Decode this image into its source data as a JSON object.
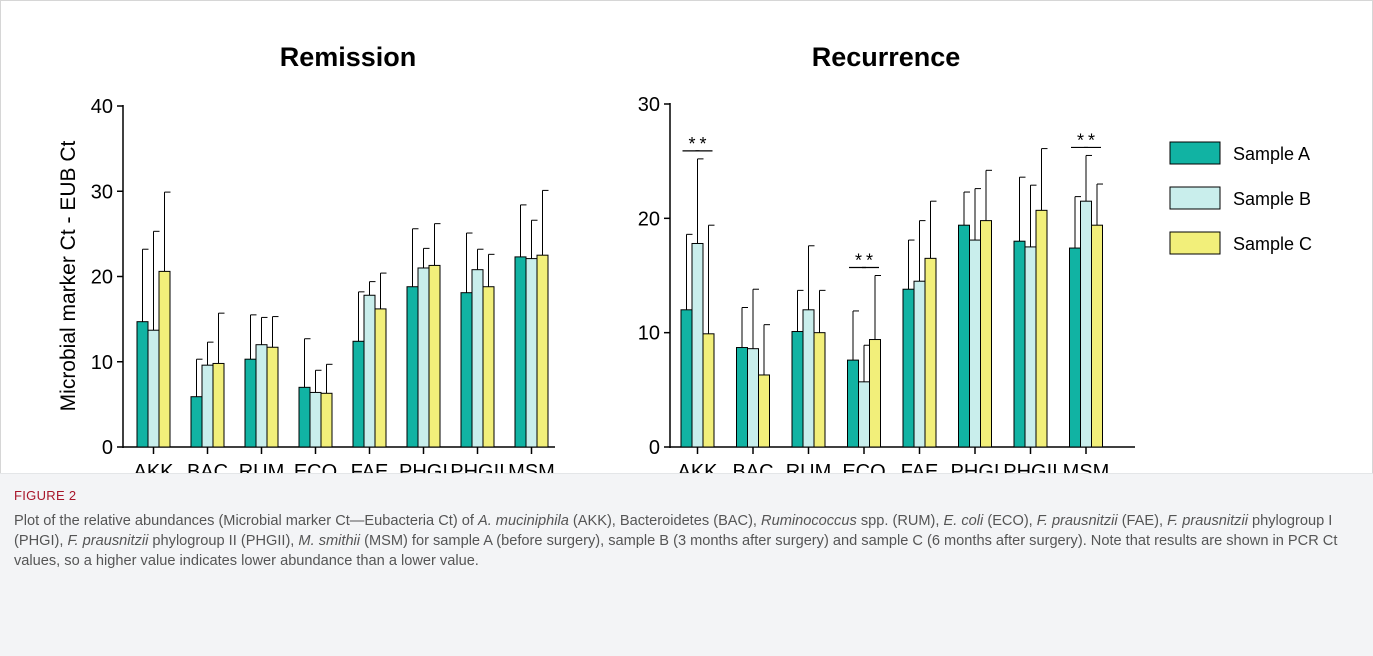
{
  "chart_data": [
    {
      "type": "bar",
      "title": "Remission",
      "ylabel": "Microbial marker Ct - EUB Ct",
      "ylim": [
        0,
        40
      ],
      "yticks": [
        0,
        10,
        20,
        30,
        40
      ],
      "categories": [
        "AKK",
        "BAC",
        "RUM",
        "ECO",
        "FAE",
        "PHGI",
        "PHGII",
        "MSM"
      ],
      "series": [
        {
          "name": "Sample A",
          "values": [
            14.7,
            5.9,
            10.3,
            7.0,
            12.4,
            18.8,
            18.1,
            22.3
          ],
          "errors": [
            8.5,
            4.4,
            5.2,
            5.7,
            5.8,
            6.8,
            7.0,
            6.1
          ]
        },
        {
          "name": "Sample B",
          "values": [
            13.7,
            9.6,
            12.0,
            6.4,
            17.8,
            21.0,
            20.8,
            22.1
          ],
          "errors": [
            11.6,
            2.7,
            3.2,
            2.6,
            1.6,
            2.3,
            2.4,
            4.5
          ]
        },
        {
          "name": "Sample C",
          "values": [
            20.6,
            9.8,
            11.7,
            6.3,
            16.2,
            21.3,
            18.8,
            22.5
          ],
          "errors": [
            9.3,
            5.9,
            3.6,
            3.4,
            4.2,
            4.9,
            3.8,
            7.6
          ]
        }
      ],
      "significance": []
    },
    {
      "type": "bar",
      "title": "Recurrence",
      "ylabel": "",
      "ylim": [
        0,
        30
      ],
      "yticks": [
        0,
        10,
        20,
        30
      ],
      "categories": [
        "AKK",
        "BAC",
        "RUM",
        "ECO",
        "FAE",
        "PHGI",
        "PHGII",
        "MSM"
      ],
      "series": [
        {
          "name": "Sample A",
          "values": [
            12.0,
            8.7,
            10.1,
            7.6,
            13.8,
            19.4,
            18.0,
            17.4
          ],
          "errors": [
            6.6,
            3.5,
            3.6,
            4.3,
            4.3,
            2.9,
            5.6,
            4.5
          ]
        },
        {
          "name": "Sample B",
          "values": [
            17.8,
            8.6,
            12.0,
            5.7,
            14.5,
            18.1,
            17.5,
            21.5
          ],
          "errors": [
            7.4,
            5.2,
            5.6,
            3.2,
            5.3,
            4.5,
            5.4,
            4.0
          ]
        },
        {
          "name": "Sample C",
          "values": [
            9.9,
            6.3,
            10.0,
            9.4,
            16.5,
            19.8,
            20.7,
            19.4
          ],
          "errors": [
            9.5,
            4.4,
            3.7,
            5.6,
            5.0,
            4.4,
            5.4,
            3.6
          ]
        }
      ],
      "significance": [
        {
          "category": "AKK",
          "label": "*",
          "from": 0,
          "to": 1
        },
        {
          "category": "AKK",
          "label": "*",
          "from": 1,
          "to": 2
        },
        {
          "category": "ECO",
          "label": "*",
          "from": 0,
          "to": 1
        },
        {
          "category": "ECO",
          "label": "*",
          "from": 1,
          "to": 2
        },
        {
          "category": "MSM",
          "label": "*",
          "from": 0,
          "to": 1
        },
        {
          "category": "MSM",
          "label": "*",
          "from": 1,
          "to": 2
        }
      ]
    }
  ],
  "legend": {
    "placement": "right",
    "items": [
      {
        "label": "Sample A",
        "color": "#11b3a3"
      },
      {
        "label": "Sample B",
        "color": "#c9eeec"
      },
      {
        "label": "Sample C",
        "color": "#f2ef7a"
      }
    ]
  },
  "caption": {
    "label": "FIGURE 2",
    "parts": [
      {
        "t": "Plot of the relative abundances (Microbial marker Ct—Eubacteria Ct) of ",
        "i": false
      },
      {
        "t": "A. muciniphila",
        "i": true
      },
      {
        "t": " (AKK), Bacteroidetes (BAC), ",
        "i": false
      },
      {
        "t": "Ruminococcus",
        "i": true
      },
      {
        "t": " spp. (RUM), ",
        "i": false
      },
      {
        "t": "E. coli",
        "i": true
      },
      {
        "t": " (ECO), ",
        "i": false
      },
      {
        "t": "F. prausnitzii",
        "i": true
      },
      {
        "t": " (FAE), ",
        "i": false
      },
      {
        "t": "F. prausnitzii",
        "i": true
      },
      {
        "t": " phylogroup I (PHGI), ",
        "i": false
      },
      {
        "t": "F. prausnitzii",
        "i": true
      },
      {
        "t": " phylogroup II (PHGII), ",
        "i": false
      },
      {
        "t": "M. smithii",
        "i": true
      },
      {
        "t": " (MSM) for sample A (before surgery), sample B (3 months after surgery) and sample C (6 months after surgery). Note that results are shown in PCR Ct values, so a higher value indicates lower abundance than a lower value.",
        "i": false
      }
    ]
  }
}
